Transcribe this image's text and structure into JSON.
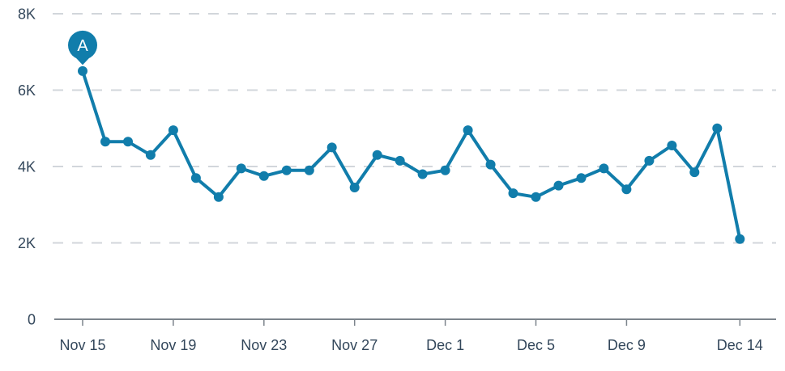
{
  "chart_data": {
    "type": "line",
    "x": [
      "Nov 15",
      "Nov 16",
      "Nov 17",
      "Nov 18",
      "Nov 19",
      "Nov 20",
      "Nov 21",
      "Nov 22",
      "Nov 23",
      "Nov 24",
      "Nov 25",
      "Nov 26",
      "Nov 27",
      "Nov 28",
      "Nov 29",
      "Nov 30",
      "Dec 1",
      "Dec 2",
      "Dec 3",
      "Dec 4",
      "Dec 5",
      "Dec 6",
      "Dec 7",
      "Dec 8",
      "Dec 9",
      "Dec 10",
      "Dec 11",
      "Dec 12",
      "Dec 13",
      "Dec 14"
    ],
    "values": [
      6500,
      4650,
      4650,
      4300,
      4950,
      3700,
      3200,
      3950,
      3750,
      3900,
      3900,
      4500,
      3450,
      4300,
      4150,
      3800,
      3900,
      4950,
      4050,
      3300,
      3200,
      3500,
      3700,
      3950,
      3400,
      4150,
      4550,
      3850,
      5000,
      2100
    ],
    "ylim": [
      0,
      8000
    ],
    "y_ticks": [
      {
        "value": 0,
        "label": "0"
      },
      {
        "value": 2000,
        "label": "2K"
      },
      {
        "value": 4000,
        "label": "4K"
      },
      {
        "value": 6000,
        "label": "6K"
      },
      {
        "value": 8000,
        "label": "8K"
      }
    ],
    "x_tick_labels": [
      {
        "index": 0,
        "label": "Nov 15"
      },
      {
        "index": 4,
        "label": "Nov 19"
      },
      {
        "index": 8,
        "label": "Nov 23"
      },
      {
        "index": 12,
        "label": "Nov 27"
      },
      {
        "index": 16,
        "label": "Dec 1"
      },
      {
        "index": 20,
        "label": "Dec 5"
      },
      {
        "index": 24,
        "label": "Dec 9"
      },
      {
        "index": 29,
        "label": "Dec 14"
      }
    ],
    "annotations": [
      {
        "label": "A",
        "index": 0
      }
    ],
    "grid": "horizontal-dashed",
    "legend": "none"
  },
  "colors": {
    "line": "#117dab",
    "point": "#117dab",
    "annotation_fill": "#117dab",
    "annotation_text": "#ffffff",
    "axis_text": "#33475b",
    "axis_line": "#7c848c",
    "gridline": "#d2d6db",
    "background": "#ffffff"
  }
}
